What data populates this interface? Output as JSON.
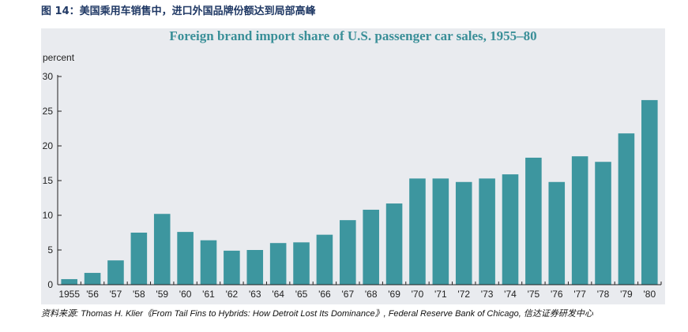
{
  "caption": "图 14：美国乘用车销售中，进口外国品牌份额达到局部高峰",
  "source": "资料来源: Thomas H. Klier《From Tail Fins to Hybrids: How Detroit Lost Its Dominance》, Federal Reserve Bank of Chicago, 信达证券研发中心",
  "colors": {
    "bar": "#3d969f",
    "panel": "#e9ebef",
    "title": "#3a8f98",
    "caption": "#1f3864"
  },
  "chart_data": {
    "type": "bar",
    "title": "Foreign brand import share of U.S. passenger car sales, 1955–80",
    "ylabel": "percent",
    "xlabel": "",
    "ylim": [
      0,
      30
    ],
    "yticks": [
      0,
      5,
      10,
      15,
      20,
      25,
      30
    ],
    "grid": false,
    "categories": [
      "1955",
      "'56",
      "'57",
      "'58",
      "'59",
      "'60",
      "'61",
      "'62",
      "'63",
      "'64",
      "'65",
      "'66",
      "'67",
      "'68",
      "'69",
      "'70",
      "'71",
      "'72",
      "'73",
      "'74",
      "'75",
      "'76",
      "'77",
      "'78",
      "'79",
      "'80"
    ],
    "values": [
      0.8,
      1.7,
      3.5,
      7.5,
      10.2,
      7.6,
      6.4,
      4.9,
      5.0,
      6.0,
      6.1,
      7.2,
      9.3,
      10.8,
      11.7,
      15.3,
      15.3,
      14.8,
      15.3,
      15.9,
      18.3,
      14.8,
      18.5,
      17.7,
      21.8,
      26.6
    ]
  }
}
